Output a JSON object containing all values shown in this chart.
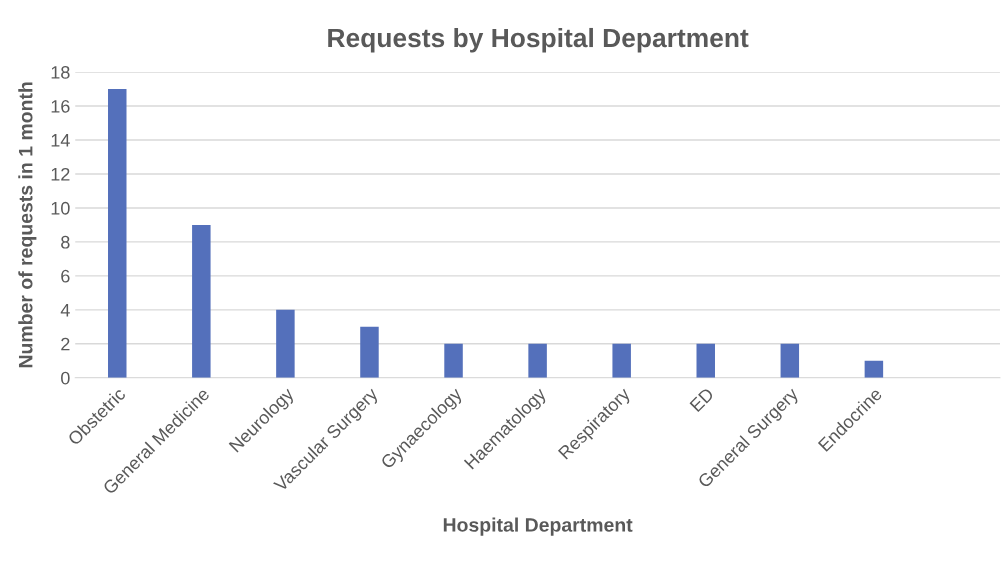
{
  "chart_data": {
    "type": "bar",
    "title": "Requests by Hospital Department",
    "xlabel": "Hospital Department",
    "ylabel": "Number of requests in 1 month",
    "categories": [
      "Obstetric",
      "General Medicine",
      "Neurology",
      "Vascular Surgery",
      "Gynaecology",
      "Haematology",
      "Respiratory",
      "ED",
      "General Surgery",
      "Endocrine",
      null
    ],
    "values": [
      17,
      9,
      4,
      3,
      2,
      2,
      2,
      2,
      2,
      1,
      null
    ],
    "color": "#5470bb",
    "ylim": [
      0,
      18
    ],
    "yticks": [
      0,
      2,
      4,
      6,
      8,
      10,
      12,
      14,
      16,
      18
    ],
    "grid": "y"
  }
}
